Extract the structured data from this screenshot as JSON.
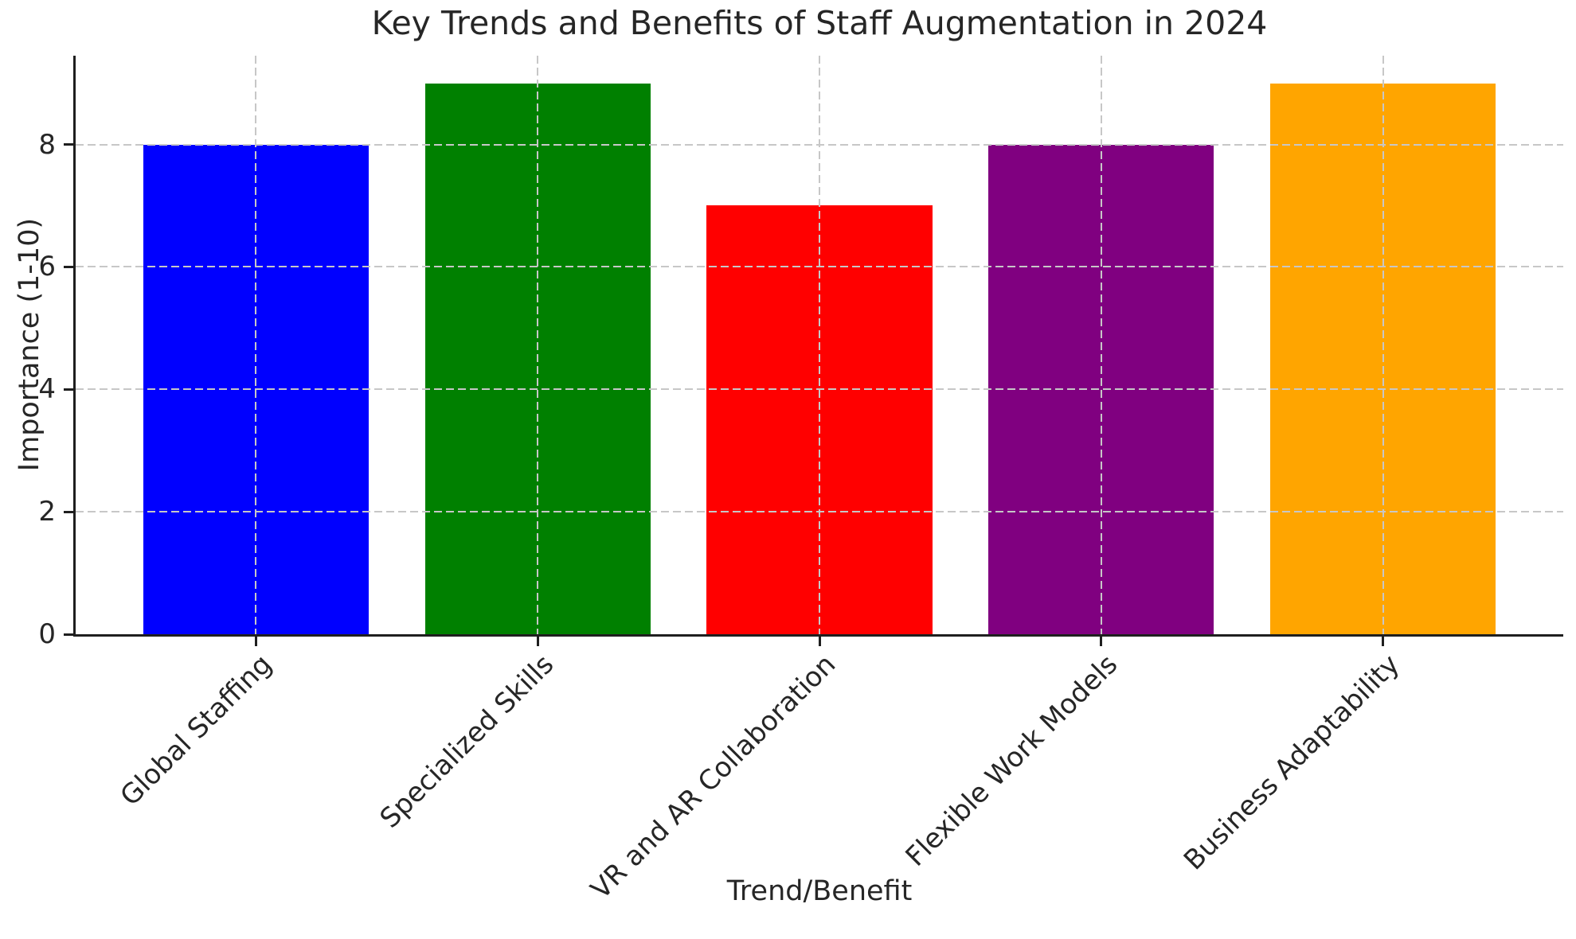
{
  "chart_data": {
    "type": "bar",
    "title": "Key Trends and Benefits of Staff Augmentation in 2024",
    "xlabel": "Trend/Benefit",
    "ylabel": "Importance (1-10)",
    "categories": [
      "Global Staffing",
      "Specialized Skills",
      "VR and AR Collaboration",
      "Flexible Work Models",
      "Business Adaptability"
    ],
    "values": [
      8,
      9,
      7,
      8,
      9
    ],
    "bar_colors": [
      "#0000ff",
      "#008000",
      "#ff0000",
      "#800080",
      "#ffa500"
    ],
    "yticks": [
      0,
      2,
      4,
      6,
      8
    ],
    "ylim": [
      0,
      9.45
    ],
    "xlim": [
      -0.64,
      4.64
    ],
    "bar_width_units": 0.8,
    "x_tick_rotation_deg": 45,
    "grid": {
      "horizontal": true,
      "vertical": true,
      "style": "dashed",
      "color": "#c7c7c7",
      "drawn_above_bars": true
    },
    "legend": "none",
    "background_color": "#ffffff",
    "text_color": "#262626",
    "spine_color": "#1f1f1f"
  }
}
